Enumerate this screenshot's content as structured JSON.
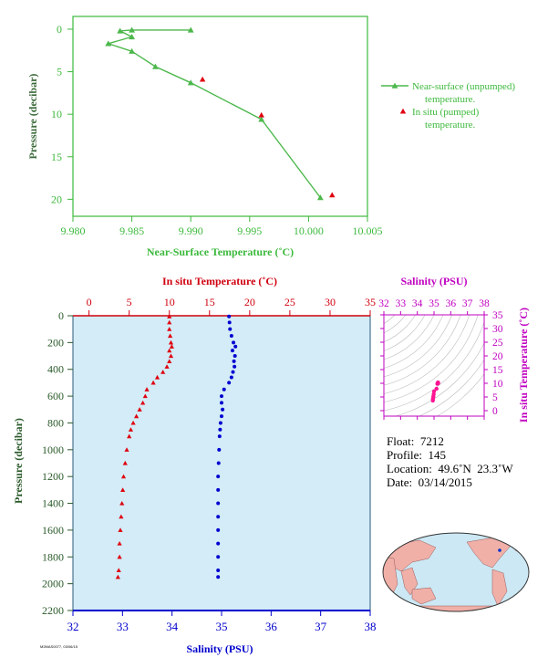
{
  "chart_data": [
    {
      "type": "line",
      "xlabel": "Near-Surface Temperature (˚C)",
      "ylabel": "Pressure (decibar)",
      "xlim": [
        9.98,
        10.005
      ],
      "ylim": [
        22,
        -1.5
      ],
      "xticks": [
        "9.980",
        "9.985",
        "9.990",
        "9.995",
        "10.000",
        "10.005"
      ],
      "yticks": [
        "0",
        "5",
        "10",
        "15",
        "20"
      ],
      "grid": false,
      "legend_position": "right",
      "colors": {
        "axes": "#3cb93c",
        "unpumped": "#4cb84c",
        "pumped": "#e0000f"
      },
      "series": [
        {
          "name": "Near-surface (unpumped) temperature.",
          "x": [
            9.99,
            9.985,
            9.984,
            9.985,
            9.983,
            9.985,
            9.987,
            9.99,
            9.996,
            10.001
          ],
          "y": [
            0.1,
            0.1,
            0.2,
            0.9,
            1.7,
            2.6,
            4.4,
            6.3,
            10.6,
            19.8
          ]
        },
        {
          "name": "In situ (pumped) temperature.",
          "x": [
            9.991,
            9.996,
            10.002
          ],
          "y": [
            5.9,
            10.1,
            19.5
          ]
        }
      ]
    },
    {
      "type": "scatter",
      "xlabel_top": "In situ Temperature (˚C)",
      "xlabel_bottom": "Salinity (PSU)",
      "ylabel": "Pressure (decibar)",
      "ylim": [
        2200,
        0
      ],
      "temp_xlim": [
        -2,
        35
      ],
      "sal_xlim": [
        32,
        38
      ],
      "temp_ticks": [
        "0",
        "5",
        "10",
        "15",
        "20",
        "25",
        "30",
        "35"
      ],
      "sal_ticks": [
        "32",
        "33",
        "34",
        "35",
        "36",
        "37",
        "38"
      ],
      "yticks": [
        "0",
        "200",
        "400",
        "600",
        "800",
        "1000",
        "1200",
        "1400",
        "1600",
        "1800",
        "2000",
        "2200"
      ],
      "colors": {
        "background": "#d3ecf7",
        "temperature": "#e0000f",
        "salinity": "#0000d0",
        "axes": "#0000cc",
        "top_axis": "#d0000f"
      },
      "temperature": {
        "p": [
          5,
          50,
          100,
          150,
          200,
          230,
          260,
          300,
          340,
          380,
          420,
          460,
          500,
          550,
          600,
          650,
          700,
          750,
          800,
          850,
          900,
          1000,
          1100,
          1200,
          1300,
          1400,
          1500,
          1600,
          1700,
          1800,
          1900,
          1950
        ],
        "t": [
          10.0,
          10.0,
          10.0,
          10.1,
          10.2,
          10.3,
          10.0,
          10.2,
          10.0,
          9.7,
          9.2,
          8.5,
          8.0,
          7.2,
          7.0,
          6.7,
          6.3,
          5.9,
          5.5,
          5.2,
          5.0,
          4.7,
          4.5,
          4.3,
          4.2,
          4.1,
          4.0,
          3.9,
          3.8,
          3.8,
          3.7,
          3.6
        ]
      },
      "salinity": {
        "p": [
          5,
          50,
          100,
          150,
          200,
          230,
          260,
          300,
          340,
          380,
          420,
          460,
          500,
          550,
          600,
          650,
          700,
          750,
          800,
          850,
          900,
          1000,
          1100,
          1200,
          1300,
          1400,
          1500,
          1600,
          1700,
          1800,
          1900,
          1950
        ],
        "s": [
          35.15,
          35.16,
          35.17,
          35.2,
          35.24,
          35.28,
          35.22,
          35.27,
          35.25,
          35.26,
          35.23,
          35.2,
          35.15,
          35.05,
          35.0,
          35.0,
          35.02,
          35.0,
          34.98,
          34.97,
          34.96,
          34.95,
          34.94,
          34.93,
          34.93,
          34.93,
          34.93,
          34.93,
          34.93,
          34.93,
          34.93,
          34.93
        ]
      }
    },
    {
      "type": "scatter",
      "xlabel_top": "Salinity (PSU)",
      "ylabel_right": "In situ Temperature (˚C)",
      "xlim": [
        32,
        38
      ],
      "ylim": [
        -2,
        35
      ],
      "xticks": [
        "32",
        "33",
        "34",
        "35",
        "36",
        "37",
        "38"
      ],
      "yticks": [
        "0",
        "5",
        "10",
        "15",
        "20",
        "25",
        "30",
        "35"
      ],
      "colors": {
        "axes": "#c000c0",
        "points": "#ff1493",
        "grid_contours": "#bcbcbc"
      },
      "points": {
        "s": [
          35.24,
          35.22,
          35.2,
          35.25,
          35.15,
          35.0,
          34.98,
          34.96,
          34.95,
          34.93,
          34.93
        ],
        "t": [
          10.3,
          10.1,
          9.8,
          10.0,
          8.0,
          7.0,
          6.0,
          5.2,
          4.7,
          4.2,
          3.7
        ]
      }
    }
  ],
  "info": {
    "float": "Float:  7212",
    "profile": "Profile:  145",
    "location": "Location:  49.6˚N  23.3˚W",
    "date": "Date:  03/14/2015"
  },
  "footnote": "M2MAS0077, 03/06/15",
  "map": {
    "colors": {
      "ocean": "#cbe8f4",
      "land": "#f0b0a8",
      "outline": "#333333",
      "marker": "#0033cc"
    }
  }
}
